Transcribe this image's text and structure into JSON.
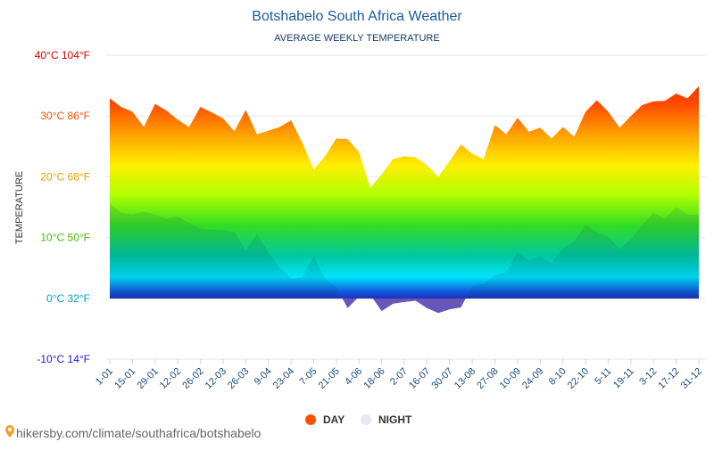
{
  "chart_data": {
    "type": "area",
    "title": "Botshabelo South Africa Weather",
    "subtitle": "AVERAGE WEEKLY TEMPERATURE",
    "y_label": "TEMPERATURE",
    "source": "hikersby.com/climate/southafrica/botshabelo",
    "categories": [
      "1-01",
      null,
      "15-01",
      null,
      "29-01",
      null,
      "12-02",
      null,
      "26-02",
      null,
      "12-03",
      null,
      "26-03",
      null,
      "9-04",
      null,
      "23-04",
      null,
      "7-05",
      null,
      "21-05",
      null,
      "4-06",
      null,
      "18-06",
      null,
      "2-07",
      null,
      "16-07",
      null,
      "30-07",
      null,
      "13-08",
      null,
      "27-08",
      null,
      "10-09",
      null,
      "24-09",
      null,
      "8-10",
      null,
      "22-10",
      null,
      "5-11",
      null,
      "19-11",
      null,
      "3-12",
      null,
      "17-12",
      null,
      "31-12"
    ],
    "series": [
      {
        "name": "DAY",
        "color": "#ff4f00",
        "values": [
          32.9,
          31.5,
          30.7,
          28.2,
          32,
          30.9,
          29.4,
          28.2,
          31.5,
          30.6,
          29.6,
          27.5,
          31,
          27,
          27.6,
          28.2,
          29.3,
          25.6,
          21.2,
          23.4,
          26.3,
          26.2,
          24.1,
          18.2,
          20.4,
          22.9,
          23.4,
          23.2,
          21.9,
          20,
          22.6,
          25.3,
          23.8,
          22.9,
          28.5,
          27,
          29.7,
          27.4,
          28.1,
          26.3,
          28.2,
          26.6,
          30.7,
          32.6,
          30.7,
          28.1,
          30,
          31.8,
          32.4,
          32.5,
          33.7,
          32.9,
          34.9
        ]
      },
      {
        "name": "NIGHT",
        "color": "#e3e8f2",
        "values": [
          15.6,
          14.1,
          13.8,
          14.3,
          13.8,
          13.1,
          13.5,
          12.4,
          11.5,
          11.3,
          11.2,
          10.9,
          7.9,
          10.6,
          7.6,
          5,
          3.2,
          3.5,
          6.9,
          3.2,
          1.8,
          -1.6,
          0.3,
          0.6,
          -2.1,
          -0.9,
          -0.6,
          -0.4,
          -1.6,
          -2.4,
          -1.8,
          -1.5,
          2.1,
          2.4,
          3.8,
          4.3,
          7.6,
          6.2,
          6.8,
          5.9,
          8.2,
          9.4,
          12.1,
          10.9,
          10.1,
          8.2,
          9.7,
          12.1,
          14.1,
          13.1,
          15,
          13.8,
          13.8
        ]
      }
    ],
    "ylim": [
      -10,
      40
    ],
    "yticks": [
      {
        "value": -10,
        "label": "-10°C 14°F"
      },
      {
        "value": 0,
        "label": "0°C 32°F"
      },
      {
        "value": 10,
        "label": "10°C 50°F"
      },
      {
        "value": 20,
        "label": "20°C 68°F"
      },
      {
        "value": 30,
        "label": "30°C 86°F"
      },
      {
        "value": 40,
        "label": "40°C 104°F"
      }
    ],
    "ytick_colors": [
      "#1a1acc",
      "#00a0d0",
      "#44bb00",
      "#e8a000",
      "#ee5500",
      "#dd0000"
    ],
    "grid": true,
    "legend": "bottom"
  }
}
